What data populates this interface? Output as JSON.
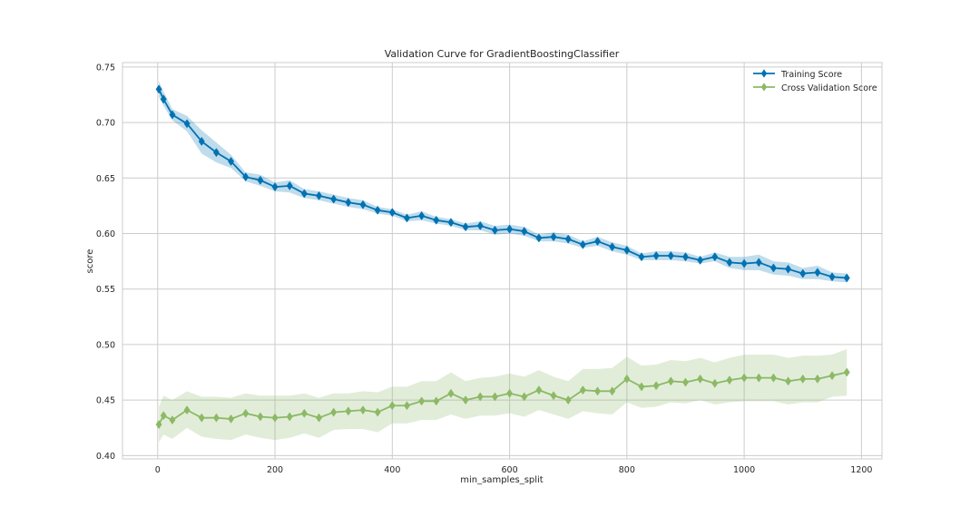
{
  "chart_data": {
    "type": "line",
    "title": "Validation Curve for GradientBoostingClassifier",
    "xlabel": "min_samples_split",
    "ylabel": "score",
    "xlim": [
      -60,
      1235
    ],
    "ylim": [
      0.397,
      0.754
    ],
    "xticks": [
      0,
      200,
      400,
      600,
      800,
      1000,
      1200
    ],
    "yticks": [
      0.4,
      0.45,
      0.5,
      0.55,
      0.6,
      0.65,
      0.7,
      0.75
    ],
    "grid": true,
    "legend_position": "top-right",
    "x": [
      2,
      10,
      25,
      50,
      75,
      100,
      125,
      150,
      175,
      200,
      225,
      250,
      275,
      300,
      325,
      350,
      375,
      400,
      425,
      450,
      475,
      500,
      525,
      550,
      575,
      600,
      625,
      650,
      675,
      700,
      725,
      750,
      775,
      800,
      825,
      850,
      875,
      900,
      925,
      950,
      975,
      1000,
      1025,
      1050,
      1075,
      1100,
      1125,
      1150,
      1175
    ],
    "series": [
      {
        "name": "Training Score",
        "color": "#0072b2",
        "values": [
          0.73,
          0.721,
          0.707,
          0.699,
          0.683,
          0.673,
          0.665,
          0.651,
          0.648,
          0.642,
          0.643,
          0.636,
          0.634,
          0.631,
          0.628,
          0.626,
          0.621,
          0.619,
          0.614,
          0.616,
          0.612,
          0.61,
          0.606,
          0.607,
          0.603,
          0.604,
          0.602,
          0.596,
          0.597,
          0.595,
          0.59,
          0.593,
          0.588,
          0.585,
          0.579,
          0.58,
          0.58,
          0.579,
          0.576,
          0.579,
          0.574,
          0.573,
          0.574,
          0.569,
          0.568,
          0.564,
          0.565,
          0.561,
          0.56
        ],
        "lower": [
          0.723,
          0.715,
          0.702,
          0.692,
          0.672,
          0.664,
          0.659,
          0.647,
          0.643,
          0.638,
          0.637,
          0.632,
          0.63,
          0.627,
          0.624,
          0.622,
          0.618,
          0.616,
          0.611,
          0.612,
          0.609,
          0.607,
          0.603,
          0.603,
          0.599,
          0.6,
          0.598,
          0.593,
          0.593,
          0.591,
          0.587,
          0.589,
          0.584,
          0.581,
          0.576,
          0.576,
          0.576,
          0.575,
          0.573,
          0.575,
          0.569,
          0.567,
          0.567,
          0.563,
          0.562,
          0.559,
          0.559,
          0.557,
          0.556
        ],
        "upper": [
          0.737,
          0.728,
          0.712,
          0.706,
          0.693,
          0.682,
          0.671,
          0.655,
          0.653,
          0.646,
          0.648,
          0.64,
          0.638,
          0.635,
          0.632,
          0.63,
          0.624,
          0.622,
          0.617,
          0.62,
          0.615,
          0.613,
          0.609,
          0.611,
          0.607,
          0.608,
          0.606,
          0.599,
          0.601,
          0.599,
          0.593,
          0.597,
          0.592,
          0.589,
          0.582,
          0.584,
          0.584,
          0.583,
          0.579,
          0.583,
          0.579,
          0.579,
          0.581,
          0.575,
          0.574,
          0.569,
          0.571,
          0.565,
          0.564
        ]
      },
      {
        "name": "Cross Validation Score",
        "color": "#8cb966",
        "values": [
          0.428,
          0.436,
          0.432,
          0.441,
          0.434,
          0.434,
          0.433,
          0.438,
          0.435,
          0.434,
          0.435,
          0.438,
          0.434,
          0.439,
          0.44,
          0.441,
          0.439,
          0.445,
          0.445,
          0.449,
          0.449,
          0.456,
          0.45,
          0.453,
          0.453,
          0.456,
          0.453,
          0.459,
          0.454,
          0.45,
          0.459,
          0.458,
          0.458,
          0.469,
          0.462,
          0.463,
          0.467,
          0.466,
          0.469,
          0.465,
          0.468,
          0.47,
          0.47,
          0.47,
          0.467,
          0.469,
          0.469,
          0.472,
          0.475
        ],
        "lower": [
          0.412,
          0.419,
          0.415,
          0.425,
          0.417,
          0.415,
          0.414,
          0.419,
          0.416,
          0.414,
          0.416,
          0.42,
          0.416,
          0.423,
          0.424,
          0.424,
          0.421,
          0.429,
          0.429,
          0.432,
          0.432,
          0.437,
          0.433,
          0.436,
          0.436,
          0.438,
          0.435,
          0.441,
          0.437,
          0.433,
          0.44,
          0.438,
          0.437,
          0.448,
          0.443,
          0.444,
          0.448,
          0.447,
          0.45,
          0.446,
          0.448,
          0.449,
          0.449,
          0.449,
          0.446,
          0.448,
          0.448,
          0.453,
          0.454
        ],
        "upper": [
          0.444,
          0.454,
          0.45,
          0.458,
          0.453,
          0.453,
          0.452,
          0.456,
          0.454,
          0.454,
          0.454,
          0.456,
          0.452,
          0.456,
          0.456,
          0.458,
          0.457,
          0.462,
          0.462,
          0.467,
          0.467,
          0.475,
          0.467,
          0.47,
          0.471,
          0.474,
          0.471,
          0.477,
          0.471,
          0.467,
          0.478,
          0.478,
          0.479,
          0.489,
          0.481,
          0.482,
          0.486,
          0.485,
          0.488,
          0.484,
          0.488,
          0.491,
          0.491,
          0.491,
          0.488,
          0.49,
          0.49,
          0.491,
          0.496
        ]
      }
    ]
  }
}
